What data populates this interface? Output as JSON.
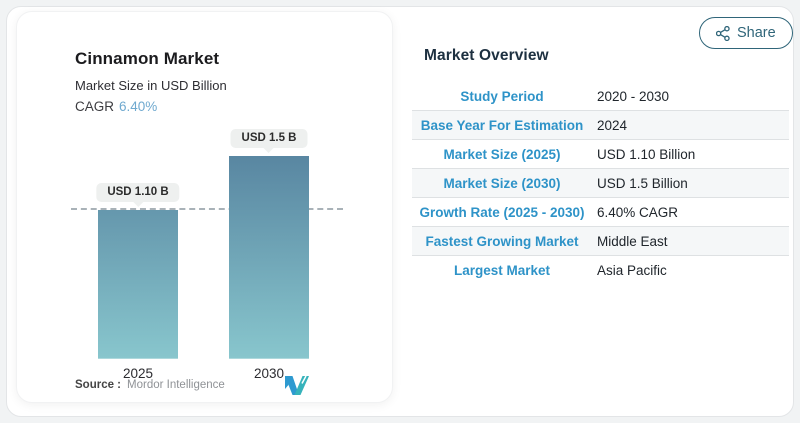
{
  "colors": {
    "label-blue": "#2e93c8",
    "heading-navy": "#1d3040",
    "share-teal": "#2f6579",
    "cagr-blue": "#6fa9cf",
    "bar-top": "#54809d",
    "bar-bottom": "#88c6cd",
    "logo-blue": "#2e9ad0",
    "logo-teal": "#36b3bb"
  },
  "share": {
    "label": "Share"
  },
  "chart_card": {
    "title": "Cinnamon Market",
    "subtitle": "Market Size in USD Billion",
    "cagr_label": "CAGR",
    "cagr_value": "6.40%",
    "source_label": "Source :",
    "source_value": "Mordor Intelligence"
  },
  "chart_data": {
    "type": "bar",
    "title": "Cinnamon Market",
    "ylabel": "Market Size in USD Billion",
    "categories": [
      "2025",
      "2030"
    ],
    "values": [
      1.1,
      1.5
    ],
    "value_labels": [
      "USD 1.10 B",
      "USD 1.5 B"
    ],
    "ylim": [
      0,
      1.65
    ],
    "reference_line": 1.1,
    "grid": "off",
    "legend": "none",
    "bar_gradient": [
      "#54809d",
      "#88c6cd"
    ]
  },
  "overview": {
    "title": "Market Overview",
    "rows": [
      {
        "label": "Study Period",
        "value": "2020 - 2030"
      },
      {
        "label": "Base Year For Estimation",
        "value": "2024"
      },
      {
        "label": "Market Size (2025)",
        "value": "USD 1.10 Billion"
      },
      {
        "label": "Market Size (2030)",
        "value": "USD 1.5 Billion"
      },
      {
        "label": "Growth Rate (2025 - 2030)",
        "value": "6.40% CAGR"
      },
      {
        "label": "Fastest Growing Market",
        "value": "Middle East"
      },
      {
        "label": "Largest Market",
        "value": "Asia Pacific"
      }
    ]
  }
}
